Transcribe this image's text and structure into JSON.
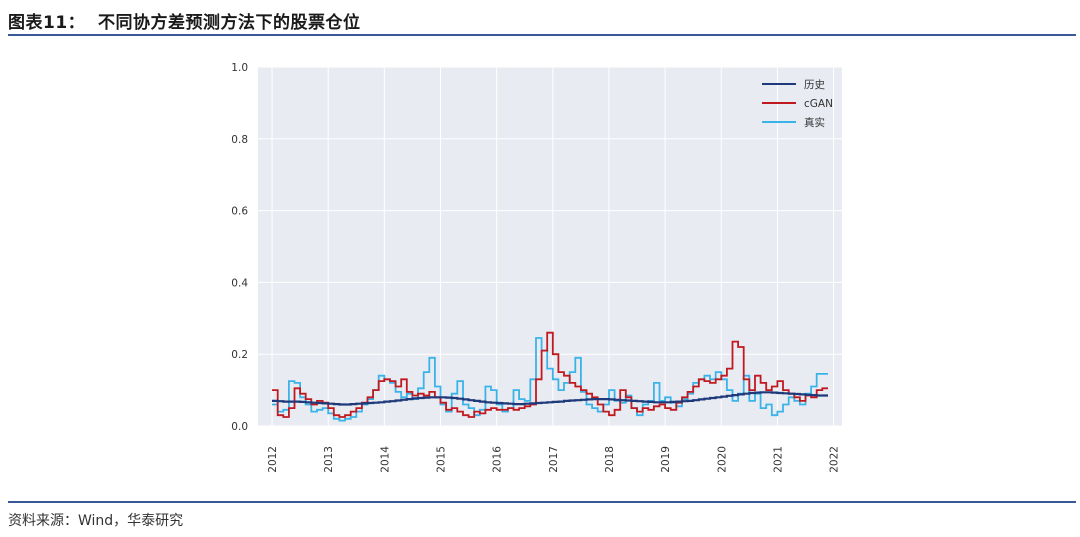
{
  "header": {
    "title": "图表11：  不同协方差预测方法下的股票仓位"
  },
  "footer": {
    "source": "资料来源：Wind，华泰研究"
  },
  "colors": {
    "rule": "#3b5998",
    "plot_bg": "#e9ebf2",
    "grid": "#ffffff"
  },
  "chart_data": {
    "type": "line",
    "title": "",
    "xlabel": "",
    "ylabel": "",
    "xlim": [
      2011.75,
      2022.15
    ],
    "ylim": [
      0,
      1.0
    ],
    "x_ticks": [
      "2012",
      "2013",
      "2014",
      "2015",
      "2016",
      "2017",
      "2018",
      "2019",
      "2020",
      "2021",
      "2022"
    ],
    "y_ticks": [
      "0.0",
      "0.2",
      "0.4",
      "0.6",
      "0.8",
      "1.0"
    ],
    "legend_position": "top-right",
    "grid": true,
    "x": [
      2012.0,
      2012.1,
      2012.2,
      2012.3,
      2012.4,
      2012.5,
      2012.6,
      2012.7,
      2012.8,
      2012.9,
      2013.0,
      2013.1,
      2013.2,
      2013.3,
      2013.4,
      2013.5,
      2013.6,
      2013.7,
      2013.8,
      2013.9,
      2014.0,
      2014.1,
      2014.2,
      2014.3,
      2014.4,
      2014.5,
      2014.6,
      2014.7,
      2014.8,
      2014.9,
      2015.0,
      2015.1,
      2015.2,
      2015.3,
      2015.4,
      2015.5,
      2015.6,
      2015.7,
      2015.8,
      2015.9,
      2016.0,
      2016.1,
      2016.2,
      2016.3,
      2016.4,
      2016.5,
      2016.6,
      2016.7,
      2016.8,
      2016.9,
      2017.0,
      2017.1,
      2017.2,
      2017.3,
      2017.4,
      2017.5,
      2017.6,
      2017.7,
      2017.8,
      2017.9,
      2018.0,
      2018.1,
      2018.2,
      2018.3,
      2018.4,
      2018.5,
      2018.6,
      2018.7,
      2018.8,
      2018.9,
      2019.0,
      2019.1,
      2019.2,
      2019.3,
      2019.4,
      2019.5,
      2019.6,
      2019.7,
      2019.8,
      2019.9,
      2020.0,
      2020.1,
      2020.2,
      2020.3,
      2020.4,
      2020.5,
      2020.6,
      2020.7,
      2020.8,
      2020.9,
      2021.0,
      2021.1,
      2021.2,
      2021.3,
      2021.4,
      2021.5,
      2021.6,
      2021.7,
      2021.8
    ],
    "series": [
      {
        "name": "历史",
        "color": "#1f3a7a",
        "values": [
          0.07,
          0.069,
          0.068,
          0.068,
          0.068,
          0.067,
          0.066,
          0.065,
          0.064,
          0.063,
          0.062,
          0.061,
          0.06,
          0.06,
          0.061,
          0.062,
          0.063,
          0.064,
          0.065,
          0.066,
          0.068,
          0.069,
          0.071,
          0.073,
          0.075,
          0.077,
          0.078,
          0.079,
          0.08,
          0.08,
          0.08,
          0.079,
          0.078,
          0.076,
          0.074,
          0.072,
          0.07,
          0.068,
          0.066,
          0.065,
          0.064,
          0.063,
          0.062,
          0.061,
          0.061,
          0.062,
          0.063,
          0.064,
          0.065,
          0.066,
          0.067,
          0.068,
          0.07,
          0.071,
          0.072,
          0.073,
          0.074,
          0.075,
          0.075,
          0.075,
          0.074,
          0.073,
          0.072,
          0.071,
          0.07,
          0.069,
          0.068,
          0.067,
          0.066,
          0.066,
          0.066,
          0.067,
          0.068,
          0.069,
          0.07,
          0.072,
          0.074,
          0.076,
          0.078,
          0.08,
          0.082,
          0.084,
          0.086,
          0.088,
          0.09,
          0.092,
          0.093,
          0.094,
          0.094,
          0.093,
          0.092,
          0.091,
          0.09,
          0.089,
          0.088,
          0.087,
          0.086,
          0.085,
          0.085
        ]
      },
      {
        "name": "cGAN",
        "color": "#c0191f",
        "values": [
          0.1,
          0.03,
          0.025,
          0.05,
          0.105,
          0.09,
          0.075,
          0.06,
          0.07,
          0.065,
          0.05,
          0.03,
          0.025,
          0.03,
          0.04,
          0.05,
          0.065,
          0.08,
          0.1,
          0.125,
          0.13,
          0.125,
          0.11,
          0.13,
          0.095,
          0.085,
          0.09,
          0.085,
          0.095,
          0.08,
          0.065,
          0.045,
          0.05,
          0.04,
          0.03,
          0.025,
          0.04,
          0.035,
          0.045,
          0.05,
          0.045,
          0.045,
          0.05,
          0.045,
          0.05,
          0.055,
          0.06,
          0.13,
          0.21,
          0.26,
          0.2,
          0.15,
          0.14,
          0.12,
          0.11,
          0.1,
          0.09,
          0.08,
          0.06,
          0.04,
          0.03,
          0.045,
          0.1,
          0.08,
          0.05,
          0.04,
          0.05,
          0.045,
          0.055,
          0.06,
          0.05,
          0.045,
          0.065,
          0.08,
          0.095,
          0.11,
          0.13,
          0.125,
          0.12,
          0.13,
          0.14,
          0.16,
          0.235,
          0.22,
          0.13,
          0.1,
          0.14,
          0.12,
          0.1,
          0.11,
          0.125,
          0.1,
          0.09,
          0.08,
          0.07,
          0.085,
          0.08,
          0.1,
          0.105
        ]
      },
      {
        "name": "真实",
        "color": "#3ab4e8",
        "values": [
          0.06,
          0.04,
          0.045,
          0.125,
          0.12,
          0.08,
          0.06,
          0.04,
          0.045,
          0.05,
          0.035,
          0.02,
          0.015,
          0.02,
          0.025,
          0.04,
          0.06,
          0.075,
          0.1,
          0.14,
          0.13,
          0.12,
          0.095,
          0.08,
          0.09,
          0.075,
          0.105,
          0.15,
          0.19,
          0.11,
          0.06,
          0.04,
          0.09,
          0.125,
          0.06,
          0.05,
          0.03,
          0.045,
          0.11,
          0.1,
          0.06,
          0.04,
          0.05,
          0.1,
          0.075,
          0.07,
          0.13,
          0.245,
          0.21,
          0.16,
          0.13,
          0.1,
          0.12,
          0.15,
          0.19,
          0.095,
          0.06,
          0.05,
          0.04,
          0.06,
          0.1,
          0.07,
          0.065,
          0.085,
          0.05,
          0.03,
          0.06,
          0.07,
          0.12,
          0.07,
          0.08,
          0.065,
          0.055,
          0.075,
          0.09,
          0.12,
          0.13,
          0.14,
          0.13,
          0.15,
          0.13,
          0.1,
          0.07,
          0.09,
          0.14,
          0.07,
          0.09,
          0.05,
          0.06,
          0.03,
          0.04,
          0.06,
          0.08,
          0.07,
          0.06,
          0.09,
          0.11,
          0.145,
          0.145
        ]
      }
    ]
  }
}
